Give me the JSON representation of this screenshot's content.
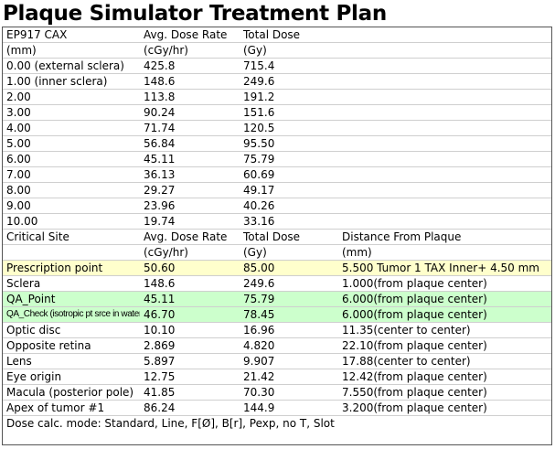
{
  "title": "Plaque Simulator Treatment Plan",
  "cax_section": {
    "headers": [
      [
        "EP917 CAX",
        "Avg. Dose Rate",
        "Total Dose"
      ],
      [
        "(mm)",
        "(cGy/hr)",
        "(Gy)"
      ]
    ],
    "rows": [
      [
        "0.00 (external sclera)",
        "425.8",
        "715.4"
      ],
      [
        "1.00 (inner sclera)",
        "148.6",
        "249.6"
      ],
      [
        "2.00",
        "113.8",
        "191.2"
      ],
      [
        "3.00",
        "90.24",
        "151.6"
      ],
      [
        "4.00",
        "71.74",
        "120.5"
      ],
      [
        "5.00",
        "56.84",
        "95.50"
      ],
      [
        "6.00",
        "45.11",
        "75.79"
      ],
      [
        "7.00",
        "36.13",
        "60.69"
      ],
      [
        "8.00",
        "29.27",
        "49.17"
      ],
      [
        "9.00",
        "23.96",
        "40.26"
      ],
      [
        "10.00",
        "19.74",
        "33.16"
      ]
    ]
  },
  "critical_section": {
    "headers": [
      [
        "Critical Site",
        "Avg. Dose Rate",
        "Total Dose",
        "Distance From Plaque"
      ],
      [
        "",
        "(cGy/hr)",
        "(Gy)",
        "(mm)"
      ]
    ],
    "rows": [
      [
        "Prescription point",
        "50.60",
        "85.00",
        "5.500 Tumor 1 TAX Inner+ 4.50 mm"
      ],
      [
        "Sclera",
        "148.6",
        "249.6",
        "1.000(from plaque center)"
      ],
      [
        "QA_Point",
        "45.11",
        "75.79",
        "6.000(from plaque center)"
      ],
      [
        "QA_Check (isotropic pt srce in water)",
        "46.70",
        "78.45",
        "6.000(from plaque center)"
      ],
      [
        "Optic disc",
        "10.10",
        "16.96",
        "11.35(center to center)"
      ],
      [
        "Opposite retina",
        "2.869",
        "4.820",
        "22.10(from plaque center)"
      ],
      [
        "Lens",
        "5.897",
        "9.907",
        "17.88(center to center)"
      ],
      [
        "Eye origin",
        "12.75",
        "21.42",
        "12.42(from plaque center)"
      ],
      [
        "Macula (posterior pole)",
        "41.85",
        "70.30",
        "7.550(from plaque center)"
      ],
      [
        "Apex of tumor #1",
        "86.24",
        "144.9",
        "3.200(from plaque center)"
      ]
    ],
    "highlight_colors": {
      "prescription": "#ffffcc",
      "qa": "#ccffcc"
    }
  },
  "footer": "Dose calc. mode: Standard, Line, F[Ø], B[r], Pexp, no T, Slot"
}
